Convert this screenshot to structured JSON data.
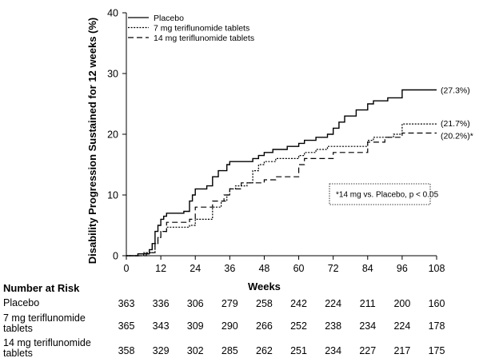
{
  "chart_data": {
    "type": "line",
    "step": true,
    "ylabel": "Disability Progression Sustained for 12 weeks (%)",
    "xlabel": "Weeks",
    "xlim": [
      0,
      108
    ],
    "ylim": [
      0,
      40
    ],
    "xticks": [
      0,
      12,
      24,
      36,
      48,
      60,
      72,
      84,
      96,
      108
    ],
    "yticks": [
      0,
      10,
      20,
      30,
      40
    ],
    "legend_position": "top-left",
    "series": [
      {
        "name": "Placebo",
        "style": "solid",
        "end_label": "(27.3%)",
        "points": [
          [
            0,
            0
          ],
          [
            4,
            0.3
          ],
          [
            8,
            1
          ],
          [
            9,
            2
          ],
          [
            10,
            4
          ],
          [
            11,
            5
          ],
          [
            12,
            6
          ],
          [
            13,
            6.5
          ],
          [
            14,
            7
          ],
          [
            20,
            7.3
          ],
          [
            22,
            9
          ],
          [
            23,
            10
          ],
          [
            24,
            11
          ],
          [
            28,
            11.5
          ],
          [
            30,
            13
          ],
          [
            32,
            14
          ],
          [
            35,
            15
          ],
          [
            36,
            15.5
          ],
          [
            44,
            16
          ],
          [
            46,
            16.5
          ],
          [
            48,
            17
          ],
          [
            51,
            17.5
          ],
          [
            56,
            18
          ],
          [
            60,
            18.5
          ],
          [
            62,
            19
          ],
          [
            66,
            19.5
          ],
          [
            70,
            20
          ],
          [
            72,
            21
          ],
          [
            74,
            22
          ],
          [
            76,
            23
          ],
          [
            80,
            24
          ],
          [
            84,
            25
          ],
          [
            86,
            25.5
          ],
          [
            91,
            26
          ],
          [
            96,
            27.3
          ],
          [
            108,
            27.3
          ]
        ]
      },
      {
        "name": "7 mg teriflunomide tablets",
        "style": "dotted",
        "end_label": "(21.7%)",
        "points": [
          [
            0,
            0
          ],
          [
            6,
            0.5
          ],
          [
            10,
            2
          ],
          [
            11,
            3
          ],
          [
            12,
            4
          ],
          [
            14,
            4.7
          ],
          [
            22,
            5
          ],
          [
            24,
            6
          ],
          [
            30,
            8
          ],
          [
            33,
            9
          ],
          [
            35,
            10
          ],
          [
            36,
            11
          ],
          [
            38,
            11.5
          ],
          [
            42,
            12
          ],
          [
            44,
            14
          ],
          [
            46,
            15
          ],
          [
            48,
            15.5
          ],
          [
            52,
            16
          ],
          [
            60,
            16.5
          ],
          [
            62,
            17
          ],
          [
            66,
            17.5
          ],
          [
            70,
            18
          ],
          [
            84,
            19
          ],
          [
            86,
            19.5
          ],
          [
            93,
            20
          ],
          [
            96,
            21.7
          ],
          [
            108,
            21.7
          ]
        ]
      },
      {
        "name": "14 mg teriflunomide tablets",
        "style": "dashed",
        "end_label": "(20.2%)*",
        "points": [
          [
            0,
            0
          ],
          [
            7,
            0.5
          ],
          [
            10,
            2
          ],
          [
            11,
            3
          ],
          [
            12,
            4
          ],
          [
            14,
            5.5
          ],
          [
            22,
            6
          ],
          [
            24,
            8
          ],
          [
            27,
            8
          ],
          [
            30,
            9
          ],
          [
            34,
            10
          ],
          [
            36,
            11
          ],
          [
            40,
            12
          ],
          [
            48,
            12.5
          ],
          [
            52,
            13
          ],
          [
            60,
            15
          ],
          [
            62,
            16
          ],
          [
            66,
            16
          ],
          [
            72,
            17
          ],
          [
            84,
            18.7
          ],
          [
            90,
            19.5
          ],
          [
            96,
            20.2
          ],
          [
            108,
            20.2
          ]
        ]
      }
    ],
    "annotation": "*14 mg vs. Placebo, p < 0.05"
  },
  "risk_table": {
    "title": "Number at Risk",
    "rows": [
      {
        "label": "Placebo",
        "values": [
          "363",
          "336",
          "306",
          "279",
          "258",
          "242",
          "224",
          "211",
          "200",
          "160"
        ]
      },
      {
        "label": "7 mg teriflunomide tablets",
        "label_lines": [
          "7 mg teriflunomide",
          "tablets"
        ],
        "values": [
          "365",
          "343",
          "309",
          "290",
          "266",
          "252",
          "238",
          "234",
          "224",
          "178"
        ]
      },
      {
        "label": "14 mg teriflunomide tablets",
        "label_lines": [
          "14 mg teriflunomide",
          "tablets"
        ],
        "values": [
          "358",
          "329",
          "302",
          "285",
          "262",
          "251",
          "234",
          "227",
          "217",
          "175"
        ]
      }
    ]
  }
}
